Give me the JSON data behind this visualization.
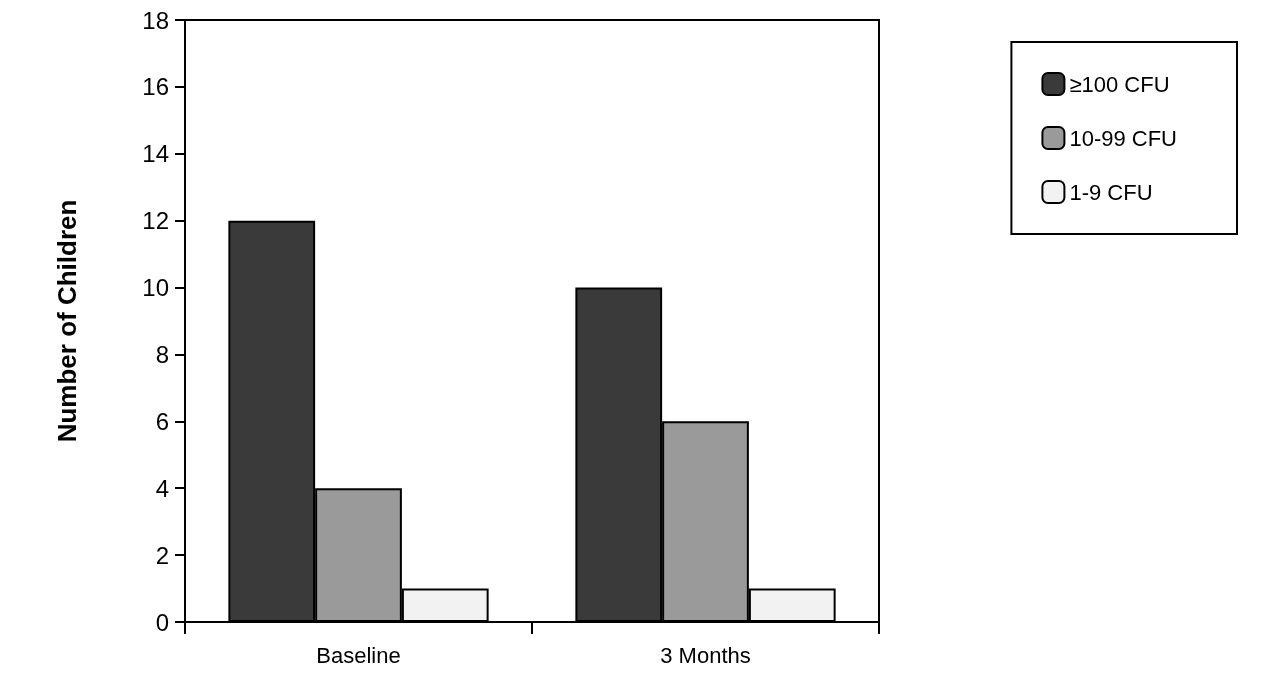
{
  "chart_data": {
    "type": "bar",
    "ylabel": "Number of Children",
    "categories": [
      "Baseline",
      "3 Months"
    ],
    "series": [
      {
        "name": "≥100 CFU",
        "color": "#3a3a3a",
        "values": [
          12,
          10
        ]
      },
      {
        "name": "10-99 CFU",
        "color": "#9a9a9a",
        "values": [
          4,
          6
        ]
      },
      {
        "name": "1-9 CFU",
        "color": "#f2f2f2",
        "values": [
          1,
          1
        ]
      }
    ],
    "ylim": [
      0,
      18
    ],
    "yticks": [
      0,
      2,
      4,
      6,
      8,
      10,
      12,
      14,
      16,
      18
    ],
    "grid": false,
    "legend": "top right"
  }
}
